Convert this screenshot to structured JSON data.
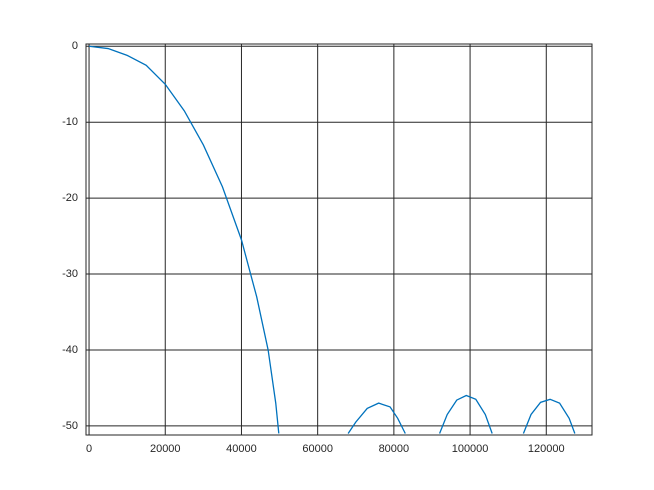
{
  "chart_data": {
    "type": "line",
    "x": [
      0,
      5000,
      10000,
      15000,
      20000,
      25000,
      30000,
      35000,
      40000,
      44000,
      47000,
      49000,
      49800,
      null,
      68000,
      70000,
      73000,
      76000,
      79000,
      81000,
      83000,
      null,
      92000,
      94000,
      96500,
      99000,
      101500,
      104000,
      105800,
      null,
      114000,
      116000,
      118500,
      121000,
      123500,
      126000,
      127500
    ],
    "series": [
      {
        "color": "#0072bd",
        "values": [
          0,
          -0.3,
          -1.2,
          -2.5,
          -5,
          -8.5,
          -13,
          -18.5,
          -25.5,
          -33,
          -40,
          -47,
          -51,
          null,
          -51,
          -49.5,
          -47.7,
          -47,
          -47.5,
          -49,
          -51,
          null,
          -51,
          -48.5,
          -46.6,
          -46,
          -46.5,
          -48.5,
          -51,
          null,
          -51,
          -48.5,
          -46.9,
          -46.5,
          -47,
          -49,
          -51
        ]
      }
    ],
    "xlim": [
      -800,
      132000
    ],
    "ylim": [
      -51.2,
      0.3
    ],
    "xticks": [
      0,
      20000,
      40000,
      60000,
      80000,
      100000,
      120000
    ],
    "yticks": [
      0,
      -10,
      -20,
      -30,
      -40,
      -50
    ],
    "grid": true
  }
}
